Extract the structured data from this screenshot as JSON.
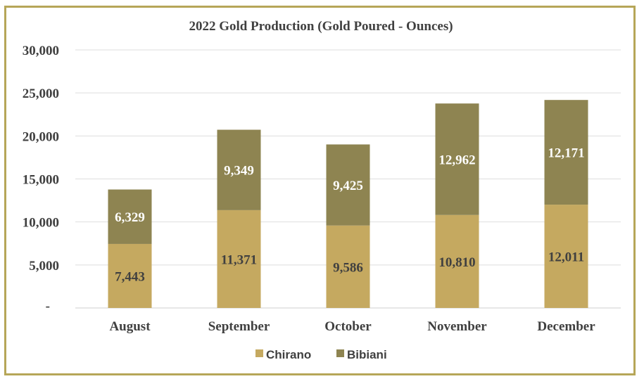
{
  "chart_data": {
    "type": "bar",
    "stacked": true,
    "title": "2022 Gold Production (Gold Poured - Ounces)",
    "categories": [
      "August",
      "September",
      "October",
      "November",
      "December"
    ],
    "series": [
      {
        "name": "Chirano",
        "color": "#c5a960",
        "values": [
          7443,
          11371,
          9586,
          10810,
          12011
        ],
        "labels": [
          "7,443",
          "11,371",
          "9,586",
          "10,810",
          "12,011"
        ]
      },
      {
        "name": "Bibiani",
        "color": "#8e8451",
        "values": [
          6329,
          9349,
          9425,
          12962,
          12171
        ],
        "labels": [
          "6,329",
          "9,349",
          "9,425",
          "12,962",
          "12,171"
        ]
      }
    ],
    "ylim": [
      0,
      30000
    ],
    "yticks": [
      0,
      5000,
      10000,
      15000,
      20000,
      25000,
      30000
    ],
    "ytick_labels": [
      "-",
      "5,000",
      "10,000",
      "15,000",
      "20,000",
      "25,000",
      "30,000"
    ],
    "grid": true,
    "legend_position": "bottom"
  }
}
